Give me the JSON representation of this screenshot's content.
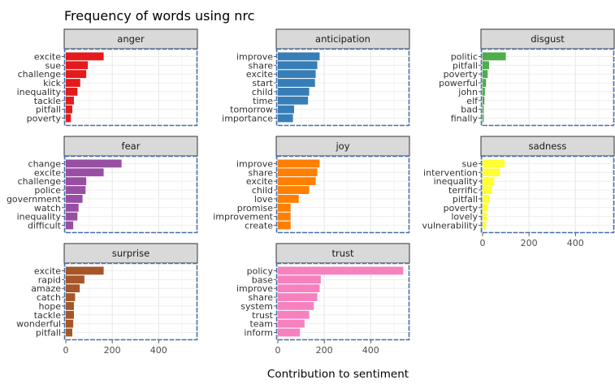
{
  "chart_data": {
    "type": "bar",
    "orientation": "horizontal",
    "layout": "facets-3x3",
    "title": "Frequency of words using nrc",
    "xlabel": "Contribution to sentiment",
    "ylabel": "",
    "xlim": [
      0,
      560
    ],
    "xticks": [
      0,
      200,
      400
    ],
    "grid": true,
    "facets": [
      {
        "name": "anger",
        "color": "#e41a1c",
        "categories": [
          "excite",
          "sue",
          "challenge",
          "kick",
          "inequality",
          "tackle",
          "pitfall",
          "poverty"
        ],
        "values": [
          163,
          95,
          88,
          62,
          50,
          35,
          28,
          22
        ]
      },
      {
        "name": "anticipation",
        "color": "#377eb8",
        "categories": [
          "improve",
          "share",
          "excite",
          "start",
          "child",
          "time",
          "tomorrow",
          "importance"
        ],
        "values": [
          180,
          170,
          163,
          160,
          135,
          130,
          70,
          65
        ]
      },
      {
        "name": "disgust",
        "color": "#4daf4a",
        "categories": [
          "politic",
          "pitfall",
          "poverty",
          "powerful",
          "john",
          "elf",
          "bad",
          "finally"
        ],
        "values": [
          100,
          28,
          22,
          15,
          10,
          8,
          5,
          5
        ]
      },
      {
        "name": "fear",
        "color": "#984ea3",
        "categories": [
          "change",
          "excite",
          "challenge",
          "police",
          "government",
          "watch",
          "inequality",
          "difficult"
        ],
        "values": [
          240,
          163,
          88,
          85,
          72,
          55,
          50,
          32
        ]
      },
      {
        "name": "joy",
        "color": "#ff7f00",
        "categories": [
          "improve",
          "share",
          "excite",
          "child",
          "love",
          "promise",
          "improvement",
          "create"
        ],
        "values": [
          180,
          170,
          163,
          135,
          90,
          55,
          55,
          55
        ]
      },
      {
        "name": "sadness",
        "color": "#ffff33",
        "categories": [
          "sue",
          "intervention",
          "inequality",
          "terrific",
          "pitfall",
          "poverty",
          "lovely",
          "vulnerability"
        ],
        "values": [
          95,
          75,
          50,
          40,
          28,
          22,
          20,
          15
        ]
      },
      {
        "name": "surprise",
        "color": "#a65628",
        "categories": [
          "excite",
          "rapid",
          "amaze",
          "catch",
          "hope",
          "tackle",
          "wonderful",
          "pitfall"
        ],
        "values": [
          163,
          80,
          60,
          40,
          35,
          35,
          32,
          28
        ]
      },
      {
        "name": "trust",
        "color": "#f781bf",
        "categories": [
          "policy",
          "base",
          "improve",
          "share",
          "system",
          "trust",
          "team",
          "inform"
        ],
        "values": [
          540,
          185,
          180,
          170,
          155,
          135,
          115,
          95
        ]
      }
    ]
  }
}
